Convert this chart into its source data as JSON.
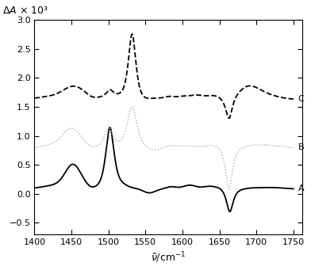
{
  "xmin": 1400,
  "xmax": 1750,
  "ymin": -0.7,
  "ymax": 3.0,
  "yticks": [
    -0.5,
    0.0,
    0.5,
    1.0,
    1.5,
    2.0,
    2.5,
    3.0
  ],
  "xticks": [
    1400,
    1450,
    1500,
    1550,
    1600,
    1650,
    1700,
    1750
  ],
  "color_A": "#000000",
  "color_B": "#aaaaaa",
  "color_C": "#000000",
  "linestyle_A": "solid",
  "linestyle_B": "dotted",
  "linestyle_C": "dashed",
  "linewidth_A": 1.3,
  "linewidth_B": 1.0,
  "linewidth_C": 1.3,
  "label_A": "A",
  "label_B": "B",
  "label_C": "C",
  "background_color": "#ffffff"
}
